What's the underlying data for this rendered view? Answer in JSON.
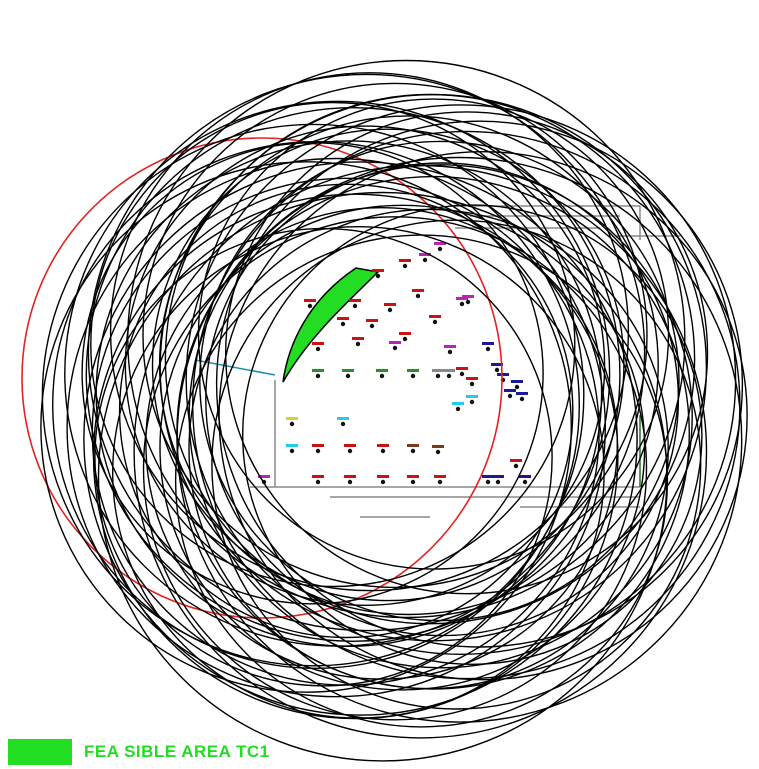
{
  "colors": {
    "background": "#ffffff",
    "circle_stroke": "#000000",
    "reference_circle": "#e52222",
    "feasible_fill": "#22dd22",
    "guide_lines": "#8a8a8a",
    "cyan_line": "#1b8fb0",
    "dark_green_line": "#2a6b2a"
  },
  "legend": {
    "label": "FEA SIBLE AREA TC1",
    "swatch_color": "#22dd22",
    "label_color": "#22dd22"
  },
  "marker_colors": [
    "#cc1111",
    "#2a8f2a",
    "#7a3b1a",
    "#22ccee",
    "#1a1a99",
    "#bb22bb",
    "#888888",
    "#ddcc33"
  ]
}
